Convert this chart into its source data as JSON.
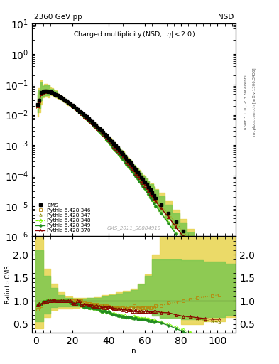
{
  "title_top": "2360 GeV pp",
  "title_top_right": "NSD",
  "watermark": "CMS_2011_S8884919",
  "right_label1": "Rivet 3.1.10, ≥ 3.3M events",
  "right_label2": "mcplots.cern.ch [arXiv:1306.3436]",
  "ylim_main": [
    1e-06,
    10
  ],
  "xlim": [
    -2,
    110
  ],
  "color_cms": "#000000",
  "color_346": "#b8860b",
  "color_347": "#808000",
  "color_348": "#7cfc00",
  "color_349": "#228b22",
  "color_370": "#8b0000",
  "band_yellow": "#e8d44d",
  "band_green": "#7ec850",
  "cms_n": [
    1,
    2,
    3,
    4,
    5,
    6,
    7,
    8,
    9,
    10,
    11,
    12,
    13,
    14,
    15,
    16,
    17,
    18,
    19,
    20,
    21,
    22,
    23,
    24,
    25,
    26,
    27,
    28,
    29,
    30,
    31,
    32,
    33,
    34,
    35,
    36,
    37,
    38,
    39,
    40,
    41,
    42,
    43,
    44,
    45,
    46,
    47,
    48,
    49,
    50,
    51,
    52,
    53,
    54,
    55,
    56,
    57,
    58,
    59,
    60,
    61,
    62,
    63,
    64,
    65,
    66,
    69,
    73,
    77,
    81,
    85,
    89,
    93,
    97,
    101
  ],
  "cms_p": [
    0.022,
    0.03,
    0.054,
    0.058,
    0.06,
    0.061,
    0.059,
    0.057,
    0.055,
    0.05,
    0.047,
    0.043,
    0.04,
    0.037,
    0.034,
    0.031,
    0.028,
    0.025,
    0.023,
    0.021,
    0.019,
    0.017,
    0.015,
    0.013,
    0.012,
    0.011,
    0.0097,
    0.0086,
    0.0076,
    0.0067,
    0.0059,
    0.0052,
    0.0046,
    0.004,
    0.0035,
    0.0031,
    0.0027,
    0.0023,
    0.002,
    0.0017,
    0.0015,
    0.0013,
    0.0011,
    0.00095,
    0.00082,
    0.0007,
    0.0006,
    0.00051,
    0.00043,
    0.00037,
    0.00031,
    0.00026,
    0.00022,
    0.00018,
    0.00015,
    0.00013,
    0.00011,
    9e-05,
    7.5e-05,
    6.2e-05,
    5.1e-05,
    4.2e-05,
    3.4e-05,
    2.8e-05,
    2.2e-05,
    1.8e-05,
    1.1e-05,
    5.8e-06,
    3e-06,
    1.5e-06,
    7e-07,
    3e-07,
    1.2e-07,
    4.5e-08,
    1.5e-08
  ],
  "py346_n": [
    1,
    2,
    3,
    4,
    5,
    6,
    7,
    8,
    9,
    10,
    11,
    12,
    13,
    14,
    15,
    16,
    17,
    18,
    19,
    20,
    21,
    22,
    23,
    24,
    25,
    26,
    27,
    28,
    29,
    30,
    31,
    32,
    33,
    34,
    35,
    36,
    37,
    38,
    39,
    40,
    41,
    42,
    43,
    44,
    45,
    46,
    47,
    48,
    49,
    50,
    51,
    52,
    53,
    54,
    55,
    56,
    57,
    58,
    59,
    60,
    61,
    62,
    63,
    64,
    65,
    66,
    69,
    73,
    77,
    81,
    85,
    89,
    93,
    97,
    101
  ],
  "py346_p": [
    0.018,
    0.026,
    0.048,
    0.055,
    0.058,
    0.06,
    0.059,
    0.057,
    0.055,
    0.051,
    0.047,
    0.043,
    0.04,
    0.037,
    0.034,
    0.031,
    0.028,
    0.025,
    0.023,
    0.021,
    0.019,
    0.017,
    0.015,
    0.013,
    0.012,
    0.01,
    0.0092,
    0.0081,
    0.0071,
    0.0063,
    0.0055,
    0.0048,
    0.0042,
    0.0037,
    0.0032,
    0.0028,
    0.0024,
    0.0021,
    0.0018,
    0.0015,
    0.0013,
    0.0011,
    0.00095,
    0.00082,
    0.0007,
    0.0006,
    0.00051,
    0.00043,
    0.00037,
    0.00031,
    0.00026,
    0.00022,
    0.00019,
    0.00016,
    0.00013,
    0.00011,
    9.2e-05,
    7.7e-05,
    6.4e-05,
    5.3e-05,
    4.4e-05,
    3.6e-05,
    2.9e-05,
    2.4e-05,
    1.9e-05,
    1.6e-05,
    9.8e-06,
    5.5e-06,
    2.9e-06,
    1.5e-06,
    7.2e-07,
    3.2e-07,
    1.3e-07,
    5e-08,
    1.7e-08
  ],
  "py347_n": [
    1,
    2,
    3,
    4,
    5,
    6,
    7,
    8,
    9,
    10,
    11,
    12,
    13,
    14,
    15,
    16,
    17,
    18,
    19,
    20,
    21,
    22,
    23,
    24,
    25,
    26,
    27,
    28,
    29,
    30,
    31,
    32,
    33,
    34,
    35,
    36,
    37,
    38,
    39,
    40,
    41,
    42,
    43,
    44,
    45,
    46,
    47,
    48,
    49,
    50,
    51,
    52,
    53,
    54,
    55,
    56,
    57,
    58,
    59,
    60,
    61,
    62,
    63,
    64,
    65,
    66,
    69,
    73,
    77,
    81,
    85,
    89,
    93,
    97,
    101
  ],
  "py347_p": [
    0.02,
    0.028,
    0.05,
    0.057,
    0.059,
    0.061,
    0.059,
    0.057,
    0.055,
    0.051,
    0.047,
    0.043,
    0.04,
    0.037,
    0.034,
    0.031,
    0.028,
    0.025,
    0.023,
    0.02,
    0.018,
    0.016,
    0.015,
    0.013,
    0.011,
    0.01,
    0.009,
    0.0079,
    0.007,
    0.0061,
    0.0054,
    0.0047,
    0.0041,
    0.0036,
    0.0031,
    0.0027,
    0.0024,
    0.002,
    0.0017,
    0.0015,
    0.0013,
    0.0011,
    0.00093,
    0.0008,
    0.00068,
    0.00058,
    0.00049,
    0.00042,
    0.00035,
    0.0003,
    0.00025,
    0.00021,
    0.00017,
    0.00015,
    0.00012,
    0.0001,
    8.5e-05,
    7.1e-05,
    5.9e-05,
    4.8e-05,
    4e-05,
    3.2e-05,
    2.6e-05,
    2.1e-05,
    1.7e-05,
    1.4e-05,
    8.3e-06,
    4.3e-06,
    2.1e-06,
    1e-06,
    4.5e-07,
    1.8e-07,
    7e-08,
    2.5e-08,
    8e-09
  ],
  "py348_n": [
    1,
    2,
    3,
    4,
    5,
    6,
    7,
    8,
    9,
    10,
    11,
    12,
    13,
    14,
    15,
    16,
    17,
    18,
    19,
    20,
    21,
    22,
    23,
    24,
    25,
    26,
    27,
    28,
    29,
    30,
    31,
    32,
    33,
    34,
    35,
    36,
    37,
    38,
    39,
    40,
    41,
    42,
    43,
    44,
    45,
    46,
    47,
    48,
    49,
    50,
    51,
    52,
    53,
    54,
    55,
    56,
    57,
    58,
    59,
    60,
    61,
    62,
    63,
    64,
    65,
    66,
    69,
    73,
    77,
    81,
    85,
    89,
    93,
    97,
    101
  ],
  "py348_p": [
    0.02,
    0.028,
    0.05,
    0.057,
    0.059,
    0.061,
    0.059,
    0.057,
    0.055,
    0.051,
    0.047,
    0.043,
    0.04,
    0.037,
    0.034,
    0.031,
    0.028,
    0.025,
    0.022,
    0.02,
    0.018,
    0.016,
    0.014,
    0.012,
    0.011,
    0.0096,
    0.0084,
    0.0074,
    0.0065,
    0.0057,
    0.005,
    0.0043,
    0.0038,
    0.0033,
    0.0028,
    0.0024,
    0.0021,
    0.0018,
    0.0015,
    0.0013,
    0.0011,
    0.00092,
    0.00079,
    0.00067,
    0.00057,
    0.00048,
    0.00041,
    0.00034,
    0.00029,
    0.00024,
    0.0002,
    0.00017,
    0.00014,
    0.00012,
    9.8e-05,
    8.2e-05,
    6.8e-05,
    5.6e-05,
    4.6e-05,
    3.8e-05,
    3.1e-05,
    2.5e-05,
    2e-05,
    1.6e-05,
    1.3e-05,
    1e-05,
    5.9e-06,
    2.9e-06,
    1.3e-06,
    5.5e-07,
    2.2e-07,
    8e-08,
    2.8e-08,
    8.5e-09,
    2.4e-09
  ],
  "py349_n": [
    1,
    2,
    3,
    4,
    5,
    6,
    7,
    8,
    9,
    10,
    11,
    12,
    13,
    14,
    15,
    16,
    17,
    18,
    19,
    20,
    21,
    22,
    23,
    24,
    25,
    26,
    27,
    28,
    29,
    30,
    31,
    32,
    33,
    34,
    35,
    36,
    37,
    38,
    39,
    40,
    41,
    42,
    43,
    44,
    45,
    46,
    47,
    48,
    49,
    50,
    51,
    52,
    53,
    54,
    55,
    56,
    57,
    58,
    59,
    60,
    61,
    62,
    63,
    64,
    65,
    66,
    69,
    73,
    77,
    81,
    85,
    89,
    93,
    97,
    101
  ],
  "py349_p": [
    0.02,
    0.028,
    0.05,
    0.057,
    0.059,
    0.061,
    0.059,
    0.057,
    0.055,
    0.051,
    0.047,
    0.043,
    0.04,
    0.037,
    0.034,
    0.031,
    0.028,
    0.025,
    0.022,
    0.02,
    0.018,
    0.016,
    0.014,
    0.012,
    0.011,
    0.0096,
    0.0084,
    0.0074,
    0.0065,
    0.0057,
    0.005,
    0.0043,
    0.0038,
    0.0033,
    0.0028,
    0.0024,
    0.0021,
    0.0018,
    0.0015,
    0.0013,
    0.0011,
    0.00092,
    0.00078,
    0.00066,
    0.00056,
    0.00047,
    0.0004,
    0.00034,
    0.00028,
    0.00024,
    0.0002,
    0.00017,
    0.00014,
    0.00011,
    9.5e-05,
    7.9e-05,
    6.6e-05,
    5.4e-05,
    4.5e-05,
    3.7e-05,
    3e-05,
    2.4e-05,
    1.9e-05,
    1.6e-05,
    1.2e-05,
    1e-05,
    5.7e-06,
    2.7e-06,
    1.2e-06,
    5e-07,
    1.9e-07,
    6.7e-08,
    2.2e-08,
    6.5e-09,
    1.8e-09
  ],
  "py370_n": [
    1,
    2,
    3,
    4,
    5,
    6,
    7,
    8,
    9,
    10,
    11,
    12,
    13,
    14,
    15,
    16,
    17,
    18,
    19,
    20,
    21,
    22,
    23,
    24,
    25,
    26,
    27,
    28,
    29,
    30,
    31,
    32,
    33,
    34,
    35,
    36,
    37,
    38,
    39,
    40,
    41,
    42,
    43,
    44,
    45,
    46,
    47,
    48,
    49,
    50,
    51,
    52,
    53,
    54,
    55,
    56,
    57,
    58,
    59,
    60,
    61,
    62,
    63,
    64,
    65,
    66,
    69,
    73,
    77,
    81,
    85,
    89,
    93,
    97,
    101
  ],
  "py370_p": [
    0.02,
    0.028,
    0.05,
    0.056,
    0.059,
    0.06,
    0.059,
    0.057,
    0.055,
    0.051,
    0.047,
    0.043,
    0.04,
    0.037,
    0.034,
    0.031,
    0.028,
    0.025,
    0.023,
    0.02,
    0.018,
    0.016,
    0.015,
    0.013,
    0.011,
    0.01,
    0.0089,
    0.0079,
    0.0069,
    0.0061,
    0.0053,
    0.0046,
    0.0041,
    0.0035,
    0.0031,
    0.0027,
    0.0023,
    0.002,
    0.0017,
    0.0015,
    0.0013,
    0.0011,
    0.00092,
    0.00079,
    0.00067,
    0.00057,
    0.00049,
    0.00041,
    0.00035,
    0.00029,
    0.00025,
    0.00021,
    0.00017,
    0.00014,
    0.00012,
    0.0001,
    8.4e-05,
    7e-05,
    5.8e-05,
    4.8e-05,
    3.9e-05,
    3.2e-05,
    2.6e-05,
    2.1e-05,
    1.7e-05,
    1.4e-05,
    8.2e-06,
    4.3e-06,
    2.1e-06,
    1e-06,
    4.6e-07,
    1.9e-07,
    7.4e-08,
    2.7e-08,
    9e-09
  ],
  "ratio_band_n": [
    0,
    4,
    8,
    12,
    16,
    20,
    24,
    28,
    32,
    36,
    40,
    44,
    48,
    52,
    56,
    60,
    64,
    68,
    80,
    92,
    104,
    110
  ],
  "ratio_band_ylo": [
    0.4,
    0.65,
    0.8,
    0.84,
    0.84,
    0.85,
    0.86,
    0.86,
    0.85,
    0.84,
    0.85,
    0.86,
    0.87,
    0.87,
    0.86,
    0.82,
    0.72,
    0.65,
    0.5,
    0.55,
    0.65,
    0.65
  ],
  "ratio_band_yhi": [
    2.5,
    1.7,
    1.38,
    1.18,
    1.1,
    1.07,
    1.06,
    1.07,
    1.08,
    1.12,
    1.14,
    1.18,
    1.22,
    1.27,
    1.37,
    1.58,
    2.0,
    2.5,
    2.5,
    2.5,
    2.5,
    2.5
  ],
  "ratio_band_glo": [
    0.55,
    0.73,
    0.86,
    0.88,
    0.88,
    0.88,
    0.88,
    0.87,
    0.87,
    0.87,
    0.87,
    0.87,
    0.87,
    0.87,
    0.83,
    0.78,
    0.68,
    0.63,
    0.6,
    0.65,
    0.7,
    0.7
  ],
  "ratio_band_ghi": [
    2.1,
    1.55,
    1.28,
    1.12,
    1.06,
    1.05,
    1.05,
    1.06,
    1.07,
    1.1,
    1.12,
    1.16,
    1.19,
    1.24,
    1.35,
    1.55,
    1.9,
    1.9,
    1.88,
    1.85,
    1.8,
    1.8
  ]
}
